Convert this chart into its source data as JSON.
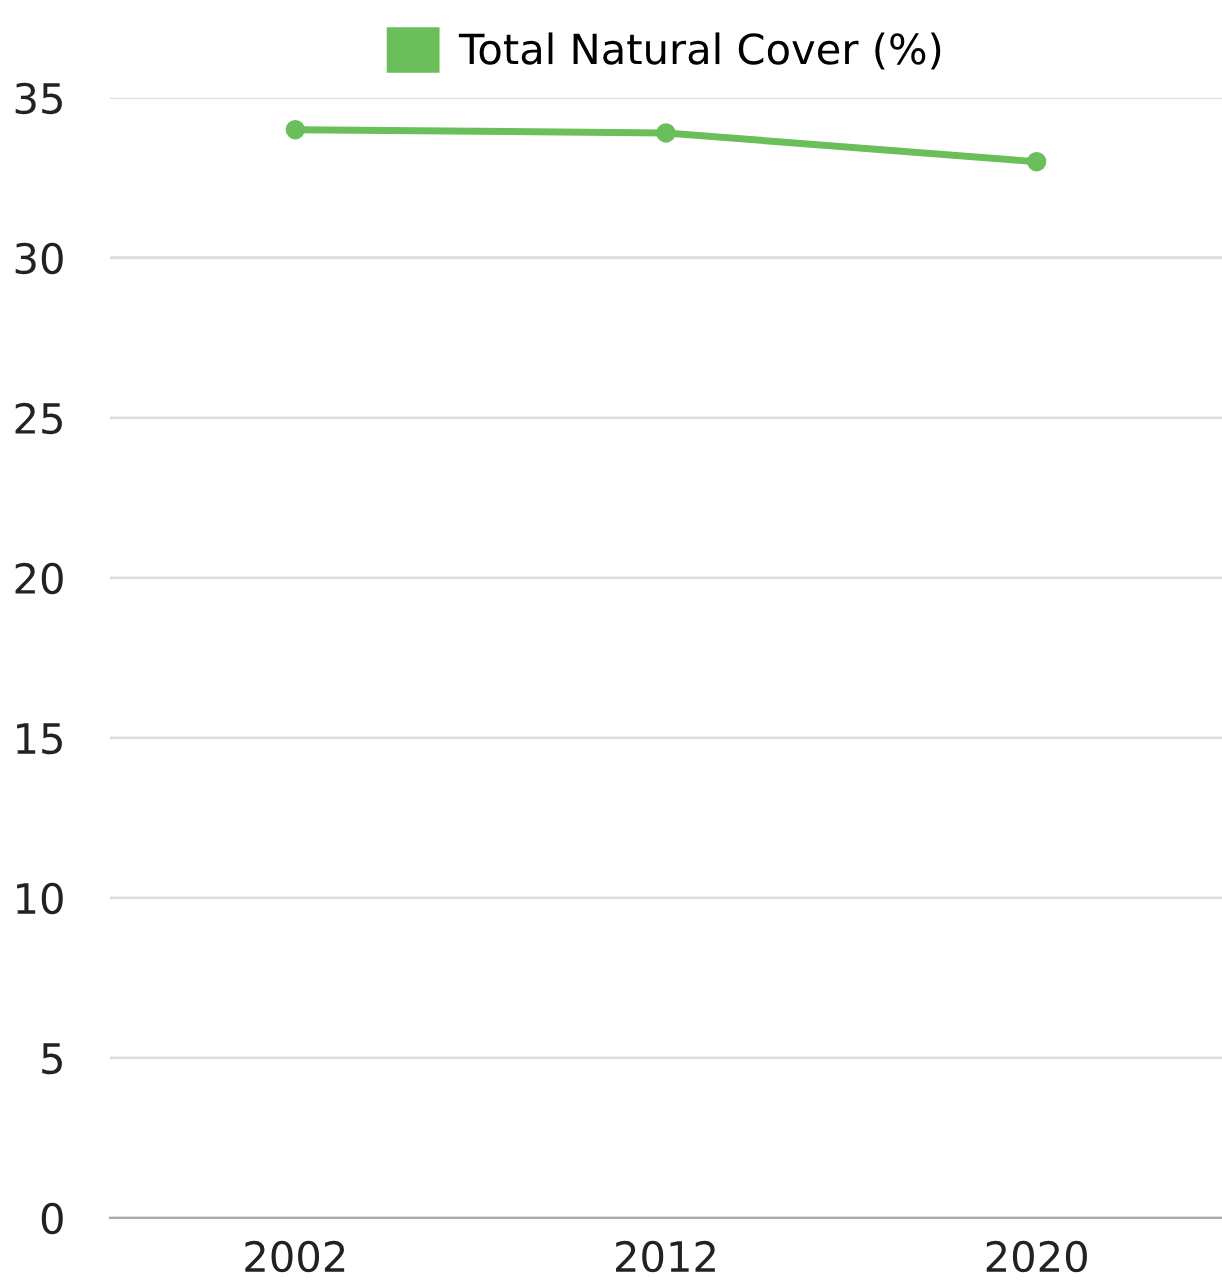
{
  "chart_data": {
    "type": "line",
    "categories": [
      "2002",
      "2012",
      "2020"
    ],
    "series": [
      {
        "name": "Total Natural Cover (%)",
        "color": "#6abf5a",
        "values": [
          34.0,
          33.9,
          33.0
        ]
      }
    ],
    "ylim": [
      0,
      35
    ],
    "yticks": [
      0,
      5,
      10,
      15,
      20,
      25,
      30,
      35
    ],
    "grid": "y",
    "legend": "top",
    "marker": "circle",
    "line_style": "solid"
  }
}
